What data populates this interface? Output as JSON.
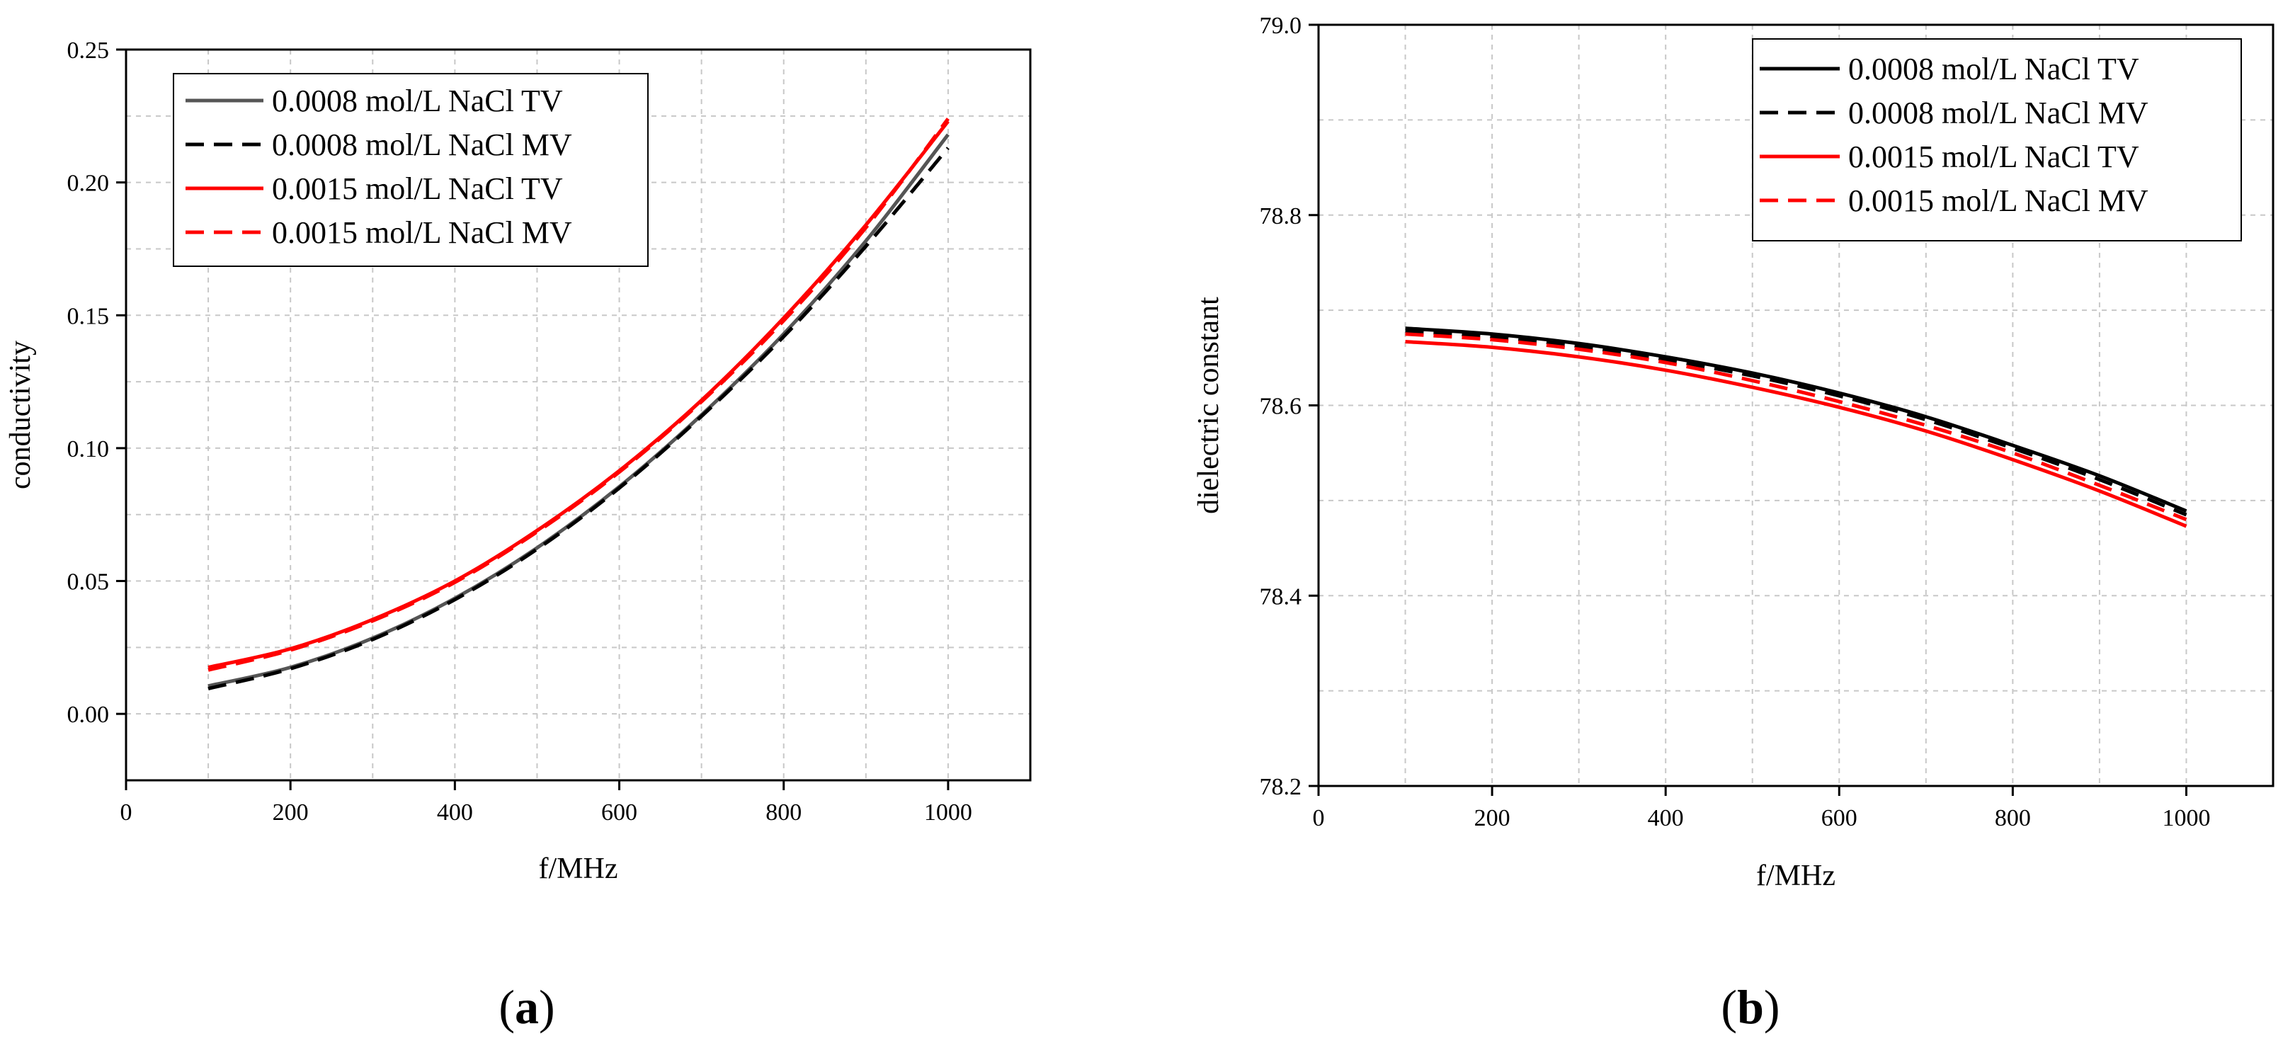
{
  "chart_data": [
    {
      "panel": "a",
      "type": "line",
      "xlabel": "f/MHz",
      "ylabel": "conductivity",
      "xlim": [
        0,
        1100
      ],
      "ylim": [
        -0.025,
        0.25
      ],
      "xticks": [
        0,
        200,
        400,
        600,
        800,
        1000
      ],
      "yticks": [
        0.0,
        0.05,
        0.1,
        0.15,
        0.2,
        0.25
      ],
      "ytick_labels": [
        "0.00",
        "0.05",
        "0.10",
        "0.15",
        "0.20",
        "0.25"
      ],
      "grid": true,
      "legend": "top-left",
      "series": [
        {
          "name": "0.0008 mol/L NaCl TV",
          "color": "#555555",
          "dash": "solid",
          "x": [
            100,
            200,
            300,
            400,
            500,
            600,
            700,
            800,
            900,
            1000
          ],
          "y": [
            0.0105,
            0.0175,
            0.0285,
            0.0435,
            0.0625,
            0.0855,
            0.1125,
            0.143,
            0.178,
            0.218
          ]
        },
        {
          "name": "0.0008 mol/L NaCl MV",
          "color": "#000000",
          "dash": "dashed",
          "x": [
            100,
            200,
            300,
            400,
            500,
            600,
            700,
            800,
            900,
            1000
          ],
          "y": [
            0.0095,
            0.017,
            0.028,
            0.043,
            0.062,
            0.085,
            0.112,
            0.142,
            0.176,
            0.213
          ]
        },
        {
          "name": "0.0015 mol/L NaCl TV",
          "color": "#ff0000",
          "dash": "solid",
          "x": [
            100,
            200,
            300,
            400,
            500,
            600,
            700,
            800,
            900,
            1000
          ],
          "y": [
            0.0175,
            0.0245,
            0.0355,
            0.05,
            0.069,
            0.0915,
            0.118,
            0.149,
            0.184,
            0.223
          ]
        },
        {
          "name": "0.0015 mol/L NaCl MV",
          "color": "#ff0000",
          "dash": "dashed",
          "x": [
            100,
            200,
            300,
            400,
            500,
            600,
            700,
            800,
            900,
            1000
          ],
          "y": [
            0.0165,
            0.024,
            0.035,
            0.0495,
            0.0685,
            0.091,
            0.1175,
            0.148,
            0.183,
            0.224
          ]
        }
      ]
    },
    {
      "panel": "b",
      "type": "line",
      "xlabel": "f/MHz",
      "ylabel": "dielectric constant",
      "xlim": [
        0,
        1100
      ],
      "ylim": [
        78.2,
        79.0
      ],
      "xticks": [
        0,
        200,
        400,
        600,
        800,
        1000
      ],
      "yticks": [
        78.2,
        78.4,
        78.6,
        78.8,
        79.0
      ],
      "ytick_labels": [
        "78.2",
        "78.4",
        "78.6",
        "78.8",
        "79.0"
      ],
      "grid": true,
      "legend": "top-right",
      "series": [
        {
          "name": "0.0008 mol/L NaCl TV",
          "color": "#000000",
          "dash": "solid",
          "x": [
            100,
            200,
            300,
            400,
            500,
            600,
            700,
            800,
            900,
            1000
          ],
          "y": [
            78.681,
            78.675,
            78.665,
            78.651,
            78.634,
            78.613,
            78.588,
            78.558,
            78.526,
            78.489
          ]
        },
        {
          "name": "0.0008 mol/L NaCl MV",
          "color": "#000000",
          "dash": "dashed",
          "x": [
            100,
            200,
            300,
            400,
            500,
            600,
            700,
            800,
            900,
            1000
          ],
          "y": [
            78.678,
            78.672,
            78.662,
            78.648,
            78.631,
            78.61,
            78.585,
            78.555,
            78.522,
            78.485
          ]
        },
        {
          "name": "0.0015 mol/L NaCl TV",
          "color": "#ff0000",
          "dash": "solid",
          "x": [
            100,
            200,
            300,
            400,
            500,
            600,
            700,
            800,
            900,
            1000
          ],
          "y": [
            78.667,
            78.661,
            78.651,
            78.637,
            78.619,
            78.598,
            78.573,
            78.543,
            78.51,
            78.473
          ]
        },
        {
          "name": "0.0015 mol/L NaCl MV",
          "color": "#ff0000",
          "dash": "dashed",
          "x": [
            100,
            200,
            300,
            400,
            500,
            600,
            700,
            800,
            900,
            1000
          ],
          "y": [
            78.675,
            78.669,
            78.659,
            78.645,
            78.626,
            78.604,
            78.579,
            78.55,
            78.516,
            78.48
          ]
        }
      ]
    }
  ],
  "panel_labels": [
    {
      "open": "(",
      "letter": "a",
      "close": ")"
    },
    {
      "open": "(",
      "letter": "b",
      "close": ")"
    }
  ]
}
